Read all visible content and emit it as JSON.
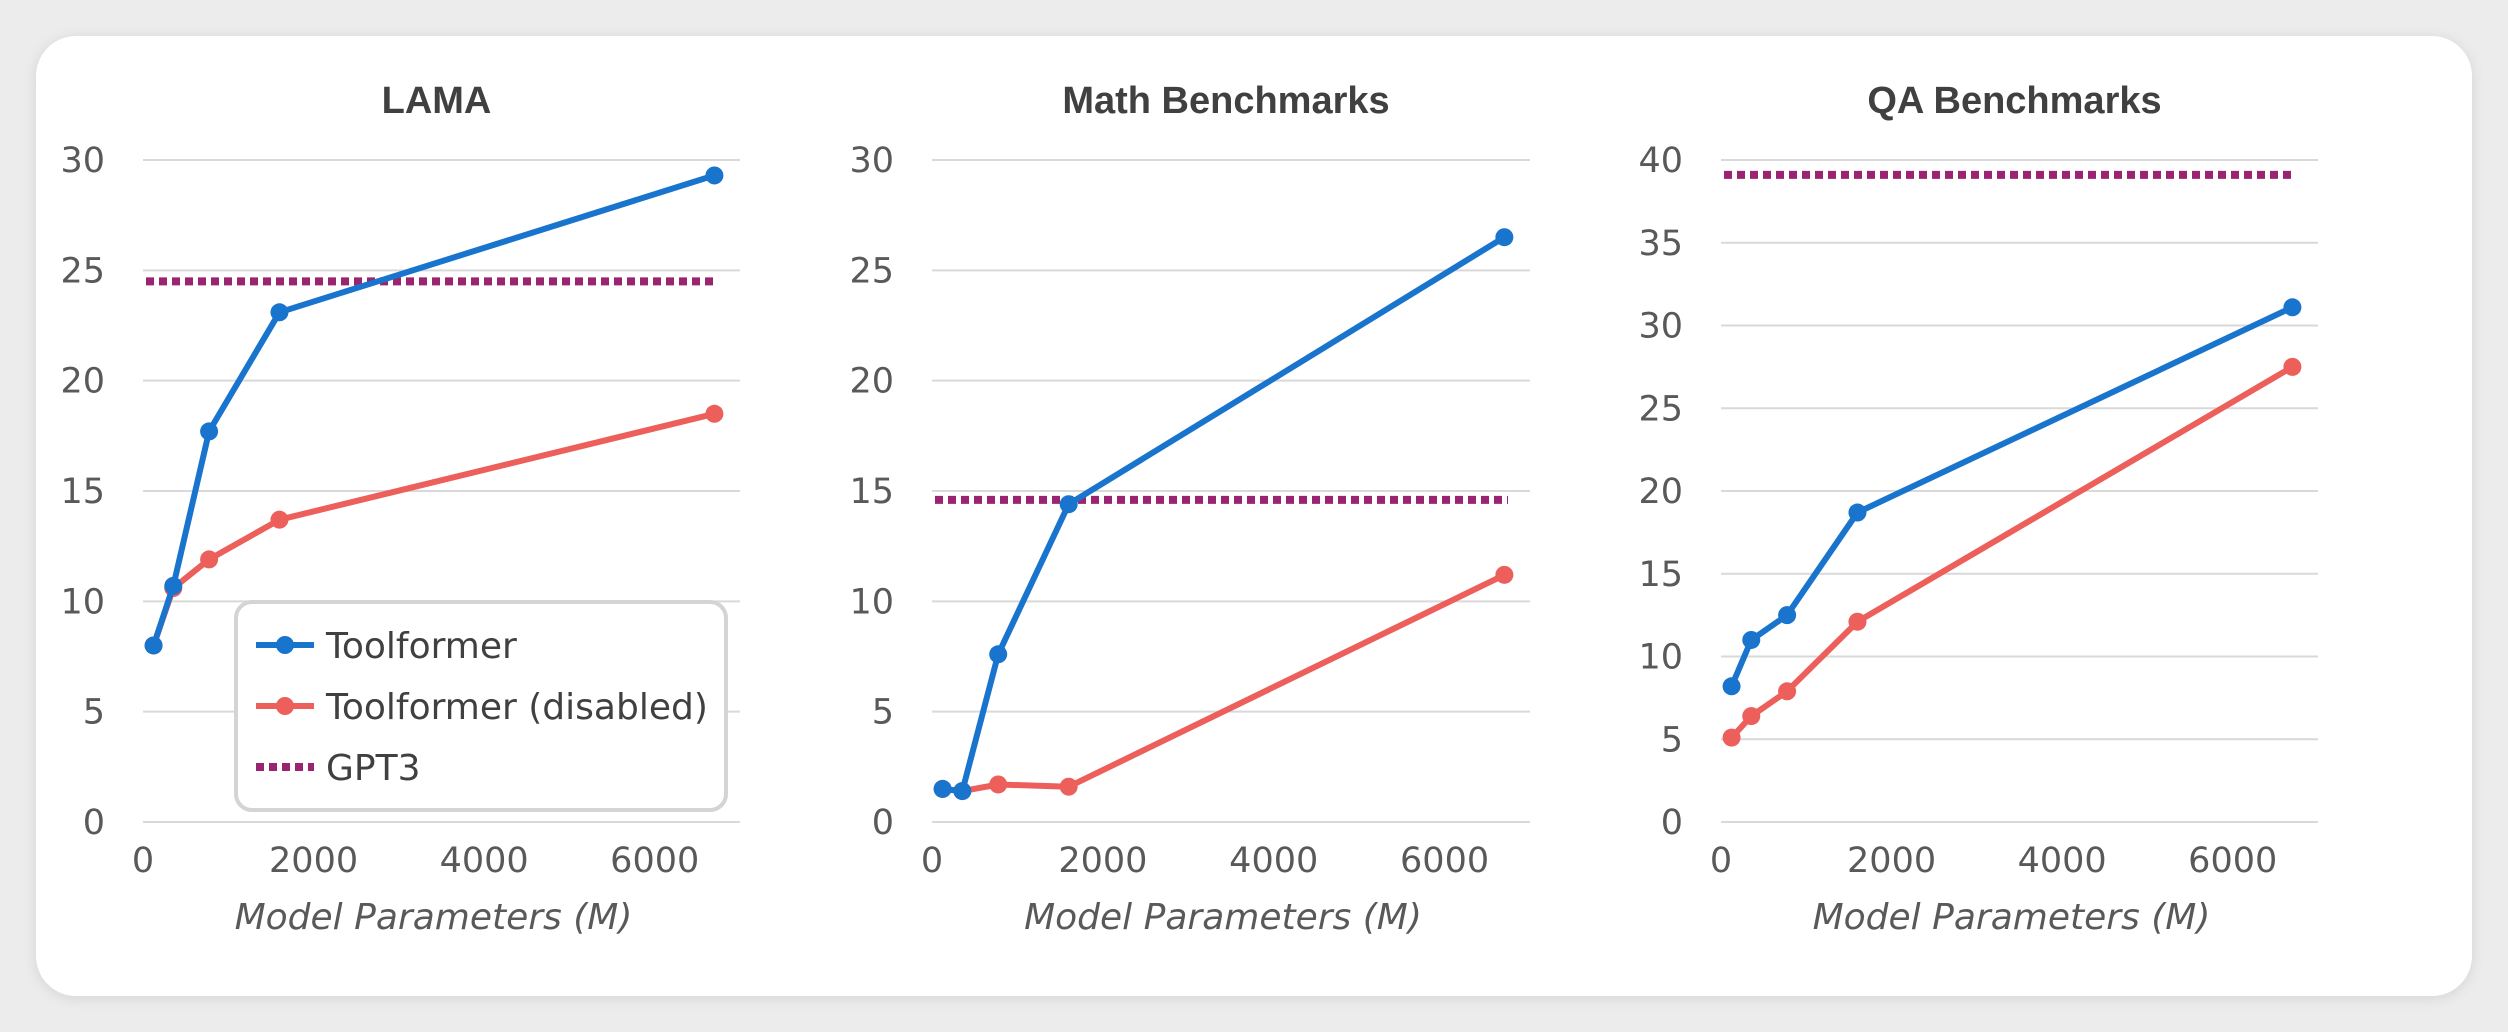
{
  "legend": {
    "items": [
      {
        "label": "Toolformer",
        "color": "#1874cd",
        "style": "solid-marker"
      },
      {
        "label": "Toolformer (disabled)",
        "color": "#ec5f5b",
        "style": "solid-marker"
      },
      {
        "label": "GPT3",
        "color": "#9b2470",
        "style": "dotted"
      }
    ],
    "placement": "inside lower-right of first chart"
  },
  "chart_data": [
    {
      "type": "line",
      "title": "LAMA",
      "xlabel": "Model Parameters (M)",
      "ylabel": "",
      "xlim": [
        0,
        7000
      ],
      "ylim": [
        0,
        30
      ],
      "xticks": [
        "0",
        "2000",
        "4000",
        "6000"
      ],
      "xtick_values": [
        0,
        2000,
        4000,
        6000
      ],
      "yticks": [
        "0",
        "5",
        "10",
        "15",
        "20",
        "25",
        "30"
      ],
      "ytick_values": [
        0,
        5,
        10,
        15,
        20,
        25,
        30
      ],
      "grid": true,
      "series": [
        {
          "name": "Toolformer",
          "x": [
            124,
            355,
            775,
            1600,
            6700
          ],
          "y": [
            8.0,
            10.7,
            17.7,
            23.1,
            29.3
          ]
        },
        {
          "name": "Toolformer (disabled)",
          "x": [
            124,
            355,
            775,
            1600,
            6700
          ],
          "y": [
            8.0,
            10.6,
            11.9,
            13.7,
            18.5
          ]
        },
        {
          "name": "GPT3",
          "x": [
            0,
            6700
          ],
          "y": [
            24.5,
            24.5
          ],
          "dotted": true
        }
      ]
    },
    {
      "type": "line",
      "title": "Math Benchmarks",
      "xlabel": "Model Parameters (M)",
      "ylabel": "",
      "xlim": [
        0,
        7000
      ],
      "ylim": [
        0,
        30
      ],
      "xticks": [
        "0",
        "2000",
        "4000",
        "6000"
      ],
      "xtick_values": [
        0,
        2000,
        4000,
        6000
      ],
      "yticks": [
        "0",
        "5",
        "10",
        "15",
        "20",
        "25",
        "30"
      ],
      "ytick_values": [
        0,
        5,
        10,
        15,
        20,
        25,
        30
      ],
      "grid": true,
      "series": [
        {
          "name": "Toolformer",
          "x": [
            124,
            355,
            775,
            1600,
            6700
          ],
          "y": [
            1.5,
            1.4,
            7.6,
            14.4,
            26.5
          ]
        },
        {
          "name": "Toolformer (disabled)",
          "x": [
            124,
            355,
            775,
            1600,
            6700
          ],
          "y": [
            1.5,
            1.4,
            1.7,
            1.6,
            11.2
          ]
        },
        {
          "name": "GPT3",
          "x": [
            0,
            6700
          ],
          "y": [
            14.6,
            14.6
          ],
          "dotted": true
        }
      ]
    },
    {
      "type": "line",
      "title": "QA Benchmarks",
      "xlabel": "Model Parameters (M)",
      "ylabel": "",
      "xlim": [
        0,
        7000
      ],
      "ylim": [
        0,
        40
      ],
      "xticks": [
        "0",
        "2000",
        "4000",
        "6000"
      ],
      "xtick_values": [
        0,
        2000,
        4000,
        6000
      ],
      "yticks": [
        "0",
        "5",
        "10",
        "15",
        "20",
        "25",
        "30",
        "35",
        "40"
      ],
      "ytick_values": [
        0,
        5,
        10,
        15,
        20,
        25,
        30,
        35,
        40
      ],
      "grid": true,
      "series": [
        {
          "name": "Toolformer",
          "x": [
            124,
            355,
            775,
            1600,
            6700
          ],
          "y": [
            8.2,
            11.0,
            12.5,
            18.7,
            31.1
          ]
        },
        {
          "name": "Toolformer (disabled)",
          "x": [
            124,
            355,
            775,
            1600,
            6700
          ],
          "y": [
            5.1,
            6.4,
            7.9,
            12.1,
            27.5
          ]
        },
        {
          "name": "GPT3",
          "x": [
            0,
            6700
          ],
          "y": [
            39.1,
            39.1
          ],
          "dotted": true
        }
      ]
    }
  ]
}
